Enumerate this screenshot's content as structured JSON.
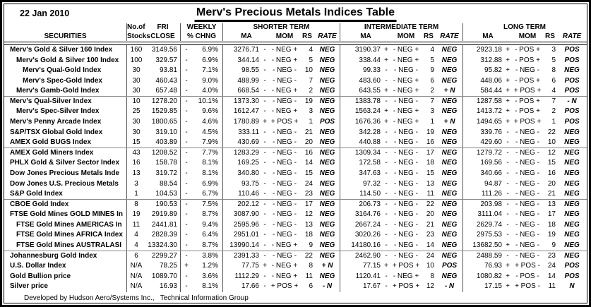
{
  "header": {
    "date": "22 Jan 2010",
    "title": "Merv's Precious Metals Indices Table"
  },
  "columns": {
    "securities": "SECURITIES",
    "stocks_l1": "No.of",
    "stocks_l2": "Stocks",
    "close_l1": "FRI",
    "close_l2": "CLOSE",
    "weekly_l1": "WEEKLY",
    "weekly_l2": "% CHNG",
    "term_groups": [
      "SHORTER TERM",
      "INTERMEDIATE TERM",
      "LONG TERM"
    ],
    "sub": [
      "MA",
      "MOM",
      "RS",
      "RATE"
    ]
  },
  "rows": [
    {
      "name": "Merv's Gold & Silver 160 Index",
      "indent": 0,
      "stocks": "160",
      "close": "3149.56",
      "wsign": "-",
      "wpct": "6.9%",
      "st": {
        "ma": "3276.71",
        "mas": "-",
        "mom": "- NEG +",
        "rs": "4",
        "rate": "NEG"
      },
      "it": {
        "ma": "3190.37",
        "mas": "+",
        "mom": "- NEG +",
        "rs": "4",
        "rate": "NEG"
      },
      "lt": {
        "ma": "2923.18",
        "mas": "+",
        "mom": "- POS +",
        "rs": "3",
        "rate": "POS"
      }
    },
    {
      "name": "Merv's Gold & Silver 100 Index",
      "indent": 1,
      "stocks": "100",
      "close": "329.57",
      "wsign": "-",
      "wpct": "6.9%",
      "st": {
        "ma": "344.14",
        "mas": "-",
        "mom": "- NEG +",
        "rs": "5",
        "rate": "NEG"
      },
      "it": {
        "ma": "338.44",
        "mas": "+",
        "mom": "- NEG +",
        "rs": "5",
        "rate": "NEG"
      },
      "lt": {
        "ma": "312.88",
        "mas": "+",
        "mom": "- POS +",
        "rs": "5",
        "rate": "POS"
      }
    },
    {
      "name": "Merv's Qual-Gold Index",
      "indent": 2,
      "stocks": "30",
      "close": "93.81",
      "wsign": "-",
      "wpct": "7.1%",
      "st": {
        "ma": "98.55",
        "mas": "-",
        "mom": "- NEG -",
        "rs": "10",
        "rate": "NEG"
      },
      "it": {
        "ma": "99.33",
        "mas": "-",
        "mom": "- NEG -",
        "rs": "9",
        "rate": "NEG"
      },
      "lt": {
        "ma": "95.82",
        "mas": "+",
        "mom": "- NEG -",
        "rs": "8",
        "rate": "NEG"
      }
    },
    {
      "name": "Merv's Spec-Gold Index",
      "indent": 2,
      "stocks": "30",
      "close": "460.43",
      "wsign": "-",
      "wpct": "9.0%",
      "st": {
        "ma": "488.99",
        "mas": "-",
        "mom": "- NEG -",
        "rs": "7",
        "rate": "NEG"
      },
      "it": {
        "ma": "483.60",
        "mas": "-",
        "mom": "- NEG +",
        "rs": "6",
        "rate": "NEG"
      },
      "lt": {
        "ma": "448.06",
        "mas": "+",
        "mom": "- POS +",
        "rs": "6",
        "rate": "POS"
      }
    },
    {
      "name": "Merv's Gamb-Gold Index",
      "indent": 1,
      "stocks": "30",
      "close": "657.48",
      "wsign": "-",
      "wpct": "4.0%",
      "sep_after": true,
      "st": {
        "ma": "668.54",
        "mas": "-",
        "mom": "- NEG +",
        "rs": "2",
        "rate": "NEG"
      },
      "it": {
        "ma": "643.55",
        "mas": "+",
        "mom": "- NEG +",
        "rs": "2",
        "rate": "+ N"
      },
      "lt": {
        "ma": "584.44",
        "mas": "+",
        "mom": "+ POS +",
        "rs": "4",
        "rate": "POS"
      }
    },
    {
      "name": "Merv's Qual-Silver Index",
      "indent": 0,
      "stocks": "10",
      "close": "1278.20",
      "wsign": "-",
      "wpct": "10.1%",
      "st": {
        "ma": "1373.30",
        "mas": "-",
        "mom": "- NEG -",
        "rs": "19",
        "rate": "NEG"
      },
      "it": {
        "ma": "1383.78",
        "mas": "-",
        "mom": "- NEG -",
        "rs": "7",
        "rate": "NEG"
      },
      "lt": {
        "ma": "1287.58",
        "mas": "+",
        "mom": "- POS +",
        "rs": "7",
        "rate": "- N"
      }
    },
    {
      "name": "Merv's Spec-Silver Index",
      "indent": 1,
      "stocks": "25",
      "close": "1529.85",
      "wsign": "-",
      "wpct": "9.6%",
      "st": {
        "ma": "1612.47",
        "mas": "-",
        "mom": "- NEG +",
        "rs": "3",
        "rate": "NEG"
      },
      "it": {
        "ma": "1563.24",
        "mas": "+",
        "mom": "- NEG +",
        "rs": "3",
        "rate": "NEG"
      },
      "lt": {
        "ma": "1413.72",
        "mas": "+",
        "mom": "- POS +",
        "rs": "2",
        "rate": "POS"
      }
    },
    {
      "name": "Merv's Penny Arcade Index",
      "indent": 0,
      "stocks": "30",
      "close": "1800.65",
      "wsign": "-",
      "wpct": "4.6%",
      "st": {
        "ma": "1780.89",
        "mas": "+",
        "mom": "+ POS +",
        "rs": "1",
        "rate": "POS"
      },
      "it": {
        "ma": "1676.36",
        "mas": "+",
        "mom": "- NEG +",
        "rs": "1",
        "rate": "+ N"
      },
      "lt": {
        "ma": "1494.65",
        "mas": "+",
        "mom": "+ POS +",
        "rs": "1",
        "rate": "POS"
      }
    },
    {
      "name": "S&P/TSX Global Gold Index",
      "indent": 0,
      "stocks": "30",
      "close": "319.10",
      "wsign": "-",
      "wpct": "4.5%",
      "st": {
        "ma": "333.11",
        "mas": "-",
        "mom": "- NEG -",
        "rs": "21",
        "rate": "NEG"
      },
      "it": {
        "ma": "342.28",
        "mas": "-",
        "mom": "- NEG -",
        "rs": "19",
        "rate": "NEG"
      },
      "lt": {
        "ma": "339.76",
        "mas": "-",
        "mom": "- NEG -",
        "rs": "22",
        "rate": "NEG"
      }
    },
    {
      "name": "AMEX Gold BUGS Index",
      "indent": 0,
      "stocks": "15",
      "close": "403.89",
      "wsign": "-",
      "wpct": "7.9%",
      "sep_after": true,
      "st": {
        "ma": "430.69",
        "mas": "-",
        "mom": "- NEG -",
        "rs": "20",
        "rate": "NEG"
      },
      "it": {
        "ma": "440.88",
        "mas": "-",
        "mom": "- NEG -",
        "rs": "16",
        "rate": "NEG"
      },
      "lt": {
        "ma": "429.60",
        "mas": "-",
        "mom": "- NEG -",
        "rs": "10",
        "rate": "NEG"
      }
    },
    {
      "name": "AMEX Gold Miners Index",
      "indent": 0,
      "stocks": "43",
      "close": "1208.52",
      "wsign": "-",
      "wpct": "7.7%",
      "st": {
        "ma": "1283.29",
        "mas": "-",
        "mom": "- NEG -",
        "rs": "16",
        "rate": "NEG"
      },
      "it": {
        "ma": "1309.34",
        "mas": "-",
        "mom": "- NEG -",
        "rs": "17",
        "rate": "NEG"
      },
      "lt": {
        "ma": "1279.72",
        "mas": "-",
        "mom": "- NEG -",
        "rs": "12",
        "rate": "NEG"
      }
    },
    {
      "name": "PHLX Gold & Silver Sector Index",
      "indent": 0,
      "stocks": "16",
      "close": "158.78",
      "wsign": "-",
      "wpct": "8.1%",
      "st": {
        "ma": "169.25",
        "mas": "-",
        "mom": "- NEG -",
        "rs": "14",
        "rate": "NEG"
      },
      "it": {
        "ma": "172.58",
        "mas": "-",
        "mom": "- NEG -",
        "rs": "18",
        "rate": "NEG"
      },
      "lt": {
        "ma": "169.56",
        "mas": "-",
        "mom": "- NEG -",
        "rs": "15",
        "rate": "NEG"
      }
    },
    {
      "name": "Dow Jones Precious Metals Inde",
      "indent": 0,
      "stocks": "13",
      "close": "319.72",
      "wsign": "-",
      "wpct": "8.1%",
      "st": {
        "ma": "340.80",
        "mas": "-",
        "mom": "- NEG -",
        "rs": "15",
        "rate": "NEG"
      },
      "it": {
        "ma": "347.63",
        "mas": "-",
        "mom": "- NEG -",
        "rs": "15",
        "rate": "NEG"
      },
      "lt": {
        "ma": "340.66",
        "mas": "-",
        "mom": "- NEG -",
        "rs": "16",
        "rate": "NEG"
      }
    },
    {
      "name": "Dow Jones U.S. Precious Metals",
      "indent": 0,
      "stocks": "3",
      "close": "88.54",
      "wsign": "-",
      "wpct": "6.9%",
      "st": {
        "ma": "93.75",
        "mas": "-",
        "mom": "- NEG -",
        "rs": "24",
        "rate": "NEG"
      },
      "it": {
        "ma": "97.32",
        "mas": "-",
        "mom": "- NEG -",
        "rs": "13",
        "rate": "NEG"
      },
      "lt": {
        "ma": "94.87",
        "mas": "-",
        "mom": "- NEG -",
        "rs": "20",
        "rate": "NEG"
      }
    },
    {
      "name": "S&P Gold Index",
      "indent": 0,
      "stocks": "1",
      "close": "104.53",
      "wsign": "-",
      "wpct": "6.7%",
      "sep_after": true,
      "st": {
        "ma": "110.46",
        "mas": "-",
        "mom": "- NEG -",
        "rs": "23",
        "rate": "NEG"
      },
      "it": {
        "ma": "114.50",
        "mas": "-",
        "mom": "- NEG -",
        "rs": "11",
        "rate": "NEG"
      },
      "lt": {
        "ma": "111.26",
        "mas": "-",
        "mom": "- NEG -",
        "rs": "21",
        "rate": "NEG"
      }
    },
    {
      "name": "CBOE Gold Index",
      "indent": 0,
      "stocks": "8",
      "close": "190.53",
      "wsign": "-",
      "wpct": "7.5%",
      "st": {
        "ma": "202.12",
        "mas": "-",
        "mom": "- NEG -",
        "rs": "17",
        "rate": "NEG"
      },
      "it": {
        "ma": "206.73",
        "mas": "-",
        "mom": "- NEG -",
        "rs": "22",
        "rate": "NEG"
      },
      "lt": {
        "ma": "203.98",
        "mas": "-",
        "mom": "- NEG -",
        "rs": "13",
        "rate": "NEG"
      }
    },
    {
      "name": "FTSE Gold Mines GOLD MINES In",
      "indent": 0,
      "stocks": "19",
      "close": "2919.89",
      "wsign": "-",
      "wpct": "8.7%",
      "st": {
        "ma": "3087.90",
        "mas": "-",
        "mom": "- NEG -",
        "rs": "12",
        "rate": "NEG"
      },
      "it": {
        "ma": "3164.76",
        "mas": "-",
        "mom": "- NEG -",
        "rs": "20",
        "rate": "NEG"
      },
      "lt": {
        "ma": "3111.04",
        "mas": "-",
        "mom": "- NEG -",
        "rs": "17",
        "rate": "NEG"
      }
    },
    {
      "name": "FTSE Gold Mines AMERICAS In",
      "indent": 1,
      "stocks": "11",
      "close": "2441.81",
      "wsign": "-",
      "wpct": "9.4%",
      "st": {
        "ma": "2595.96",
        "mas": "-",
        "mom": "- NEG -",
        "rs": "13",
        "rate": "NEG"
      },
      "it": {
        "ma": "2667.24",
        "mas": "-",
        "mom": "- NEG -",
        "rs": "21",
        "rate": "NEG"
      },
      "lt": {
        "ma": "2629.74",
        "mas": "-",
        "mom": "- NEG -",
        "rs": "18",
        "rate": "NEG"
      }
    },
    {
      "name": "FTSE Gold Mines AFRICA Index",
      "indent": 1,
      "stocks": "4",
      "close": "2828.39",
      "wsign": "-",
      "wpct": "6.4%",
      "st": {
        "ma": "2951.01",
        "mas": "-",
        "mom": "- NEG -",
        "rs": "18",
        "rate": "NEG"
      },
      "it": {
        "ma": "3020.26",
        "mas": "-",
        "mom": "- NEG -",
        "rs": "23",
        "rate": "NEG"
      },
      "lt": {
        "ma": "2975.53",
        "mas": "-",
        "mom": "- NEG -",
        "rs": "19",
        "rate": "NEG"
      }
    },
    {
      "name": "FTSE Gold Mines AUSTRALASI",
      "indent": 1,
      "stocks": "4",
      "close": "13324.30",
      "wsign": "-",
      "wpct": "8.7%",
      "sep_after": true,
      "st": {
        "ma": "13990.14",
        "mas": "-",
        "mom": "- NEG +",
        "rs": "9",
        "rate": "NEG"
      },
      "it": {
        "ma": "14180.16",
        "mas": "-",
        "mom": "- NEG -",
        "rs": "14",
        "rate": "NEG"
      },
      "lt": {
        "ma": "13682.50",
        "mas": "+",
        "mom": "- NEG -",
        "rs": "9",
        "rate": "NEG"
      }
    },
    {
      "name": "Johannesburg Gold Index",
      "indent": 0,
      "stocks": "6",
      "close": "2299.27",
      "wsign": "-",
      "wpct": "3.8%",
      "st": {
        "ma": "2391.33",
        "mas": "-",
        "mom": "- NEG -",
        "rs": "22",
        "rate": "NEG"
      },
      "it": {
        "ma": "2462.90",
        "mas": "-",
        "mom": "- NEG -",
        "rs": "24",
        "rate": "NEG"
      },
      "lt": {
        "ma": "2488.59",
        "mas": "-",
        "mom": "- NEG -",
        "rs": "23",
        "rate": "NEG"
      }
    },
    {
      "name": "U.S. Dollar Index",
      "indent": 0,
      "stocks": "N/A",
      "close": "78.25",
      "wsign": "+",
      "wpct": "1.2%",
      "st": {
        "ma": "77.75",
        "mas": "+",
        "mom": "- NEG +",
        "rs": "8",
        "rate": "+ N"
      },
      "it": {
        "ma": "77.15",
        "mas": "+",
        "mom": "+ POS +",
        "rs": "10",
        "rate": "POS"
      },
      "lt": {
        "ma": "76.93",
        "mas": "+",
        "mom": "+ POS -",
        "rs": "24",
        "rate": "POS"
      }
    },
    {
      "name": "Gold Bullion price",
      "indent": 0,
      "stocks": "N/A",
      "close": "1089.70",
      "wsign": "-",
      "wpct": "3.6%",
      "st": {
        "ma": "1112.29",
        "mas": "-",
        "mom": "- NEG +",
        "rs": "11",
        "rate": "NEG"
      },
      "it": {
        "ma": "1120.41",
        "mas": "-",
        "mom": "- NEG +",
        "rs": "8",
        "rate": "NEG"
      },
      "lt": {
        "ma": "1080.82",
        "mas": "+",
        "mom": "- POS -",
        "rs": "14",
        "rate": "POS"
      }
    },
    {
      "name": "Silver price",
      "indent": 0,
      "stocks": "N/A",
      "close": "16.93",
      "wsign": "-",
      "wpct": "8.1%",
      "st": {
        "ma": "17.66",
        "mas": "-",
        "mom": "+ POS +",
        "rs": "6",
        "rate": "- N"
      },
      "it": {
        "ma": "17.67",
        "mas": "-",
        "mom": "+ POS +",
        "rs": "12",
        "rate": "- N"
      },
      "lt": {
        "ma": "17.15",
        "mas": "+",
        "mom": "+ POS -",
        "rs": "11",
        "rate": "N"
      }
    }
  ],
  "footer": "Developed by Hudson Aero/Systems Inc.,   Technical Information Group"
}
